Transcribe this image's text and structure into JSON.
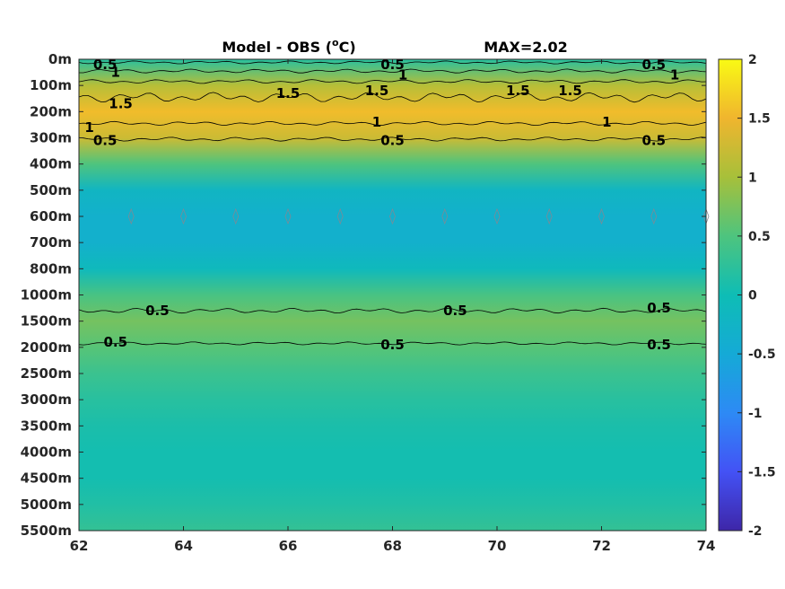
{
  "chart_data": {
    "type": "heatmap",
    "title": "Model - OBS (°C)",
    "title_parts": {
      "prefix": "Model - OBS (",
      "sup": "o",
      "suffix": "C)"
    },
    "max_label": "MAX=2.02",
    "x_ticks": [
      "62",
      "64",
      "66",
      "68",
      "70",
      "72",
      "74"
    ],
    "xlim": [
      62,
      74
    ],
    "y_ticks": [
      "0m",
      "100m",
      "200m",
      "300m",
      "400m",
      "500m",
      "600m",
      "700m",
      "800m",
      "1000m",
      "1500m",
      "2000m",
      "2500m",
      "3000m",
      "3500m",
      "4000m",
      "4500m",
      "5000m",
      "5500m"
    ],
    "colorbar": {
      "ticks": [
        "2",
        "1.5",
        "1",
        "0.5",
        "0",
        "-0.5",
        "-1",
        "-1.5",
        "-2"
      ],
      "range": [
        -2,
        2
      ]
    },
    "depth_profile": [
      0.2,
      1.1,
      1.55,
      1.25,
      0.5,
      -0.2,
      -0.35,
      -0.35,
      -0.1,
      0.45,
      0.72,
      0.55,
      0.35,
      0.2,
      0.1,
      0.05,
      0.05,
      0.15,
      0.3
    ],
    "contour_labels": [
      {
        "text": "0.5",
        "x": 62.5,
        "y": 0.2
      },
      {
        "text": "1",
        "x": 62.7,
        "y": 0.5
      },
      {
        "text": "1.5",
        "x": 62.8,
        "y": 1.7
      },
      {
        "text": "1",
        "x": 62.2,
        "y": 2.6
      },
      {
        "text": "0.5",
        "x": 62.5,
        "y": 3.1
      },
      {
        "text": "0.5",
        "x": 68.0,
        "y": 0.2
      },
      {
        "text": "1",
        "x": 68.2,
        "y": 0.6
      },
      {
        "text": "1.5",
        "x": 66.0,
        "y": 1.3
      },
      {
        "text": "1.5",
        "x": 67.7,
        "y": 1.2
      },
      {
        "text": "1",
        "x": 67.7,
        "y": 2.4
      },
      {
        "text": "0.5",
        "x": 68.0,
        "y": 3.1
      },
      {
        "text": "0.5",
        "x": 73.0,
        "y": 0.2
      },
      {
        "text": "1",
        "x": 73.4,
        "y": 0.6
      },
      {
        "text": "1.5",
        "x": 70.4,
        "y": 1.2
      },
      {
        "text": "1.5",
        "x": 71.4,
        "y": 1.2
      },
      {
        "text": "1",
        "x": 72.1,
        "y": 2.4
      },
      {
        "text": "0.5",
        "x": 73.0,
        "y": 3.1
      },
      {
        "text": "0.5",
        "x": 63.5,
        "y": 9.6
      },
      {
        "text": "0.5",
        "x": 69.2,
        "y": 9.6
      },
      {
        "text": "0.5",
        "x": 73.1,
        "y": 9.5
      },
      {
        "text": "0.5",
        "x": 62.7,
        "y": 10.8
      },
      {
        "text": "0.5",
        "x": 68.0,
        "y": 10.9
      },
      {
        "text": "0.5",
        "x": 73.1,
        "y": 10.9
      }
    ]
  }
}
